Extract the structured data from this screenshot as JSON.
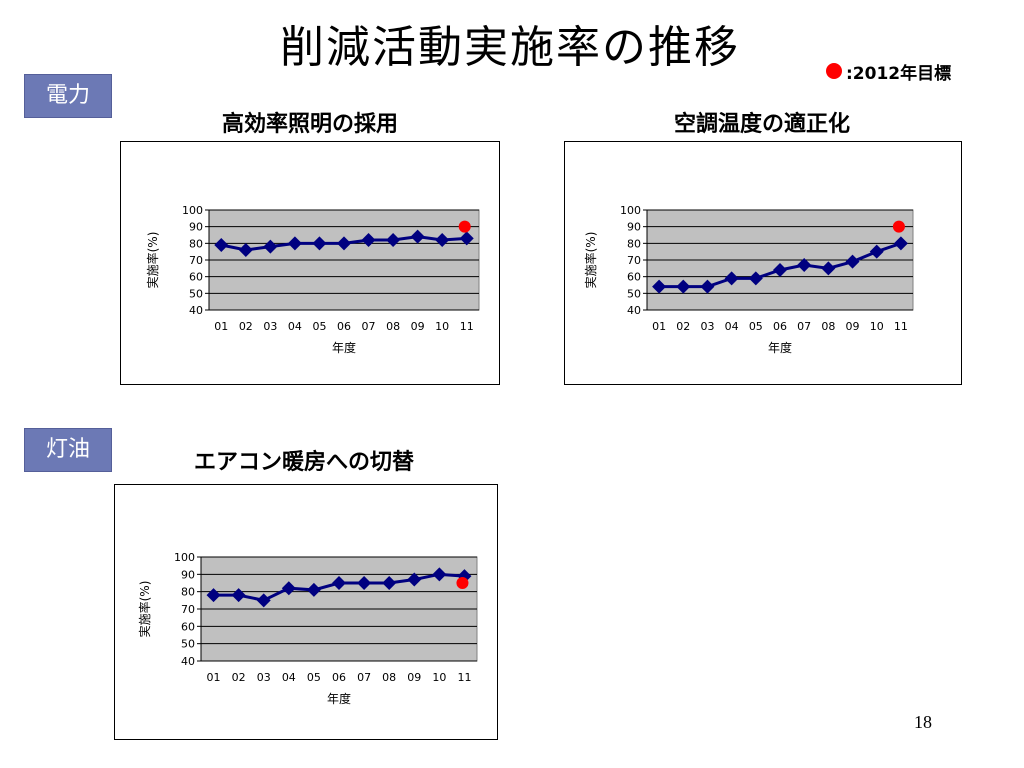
{
  "slide": {
    "title": "削減活動実施率の推移",
    "legend_text": ":2012年目標",
    "page_number": "18",
    "target_color": "#ff0000",
    "series_color": "#000080",
    "plot_bg": "#c0c0c0"
  },
  "sections": [
    {
      "label": "電力",
      "color": "#6c79b5"
    },
    {
      "label": "灯油",
      "color": "#6c79b5"
    }
  ],
  "chart_data": [
    {
      "type": "line",
      "title": "高効率照明の採用",
      "xlabel": "年度",
      "ylabel": "実施率(%)",
      "categories": [
        "01",
        "02",
        "03",
        "04",
        "05",
        "06",
        "07",
        "08",
        "09",
        "10",
        "11"
      ],
      "series": [
        {
          "values": [
            79,
            76,
            78,
            80,
            80,
            80,
            82,
            82,
            84,
            82,
            83
          ]
        }
      ],
      "target": {
        "x": "11",
        "value": 90
      },
      "ylim": [
        40,
        100
      ],
      "yticks": [
        40,
        50,
        60,
        70,
        80,
        90,
        100
      ],
      "grid": true
    },
    {
      "type": "line",
      "title": "空調温度の適正化",
      "xlabel": "年度",
      "ylabel": "実施率(%)",
      "categories": [
        "01",
        "02",
        "03",
        "04",
        "05",
        "06",
        "07",
        "08",
        "09",
        "10",
        "11"
      ],
      "series": [
        {
          "values": [
            54,
            54,
            54,
            59,
            59,
            64,
            67,
            65,
            69,
            75,
            80
          ]
        }
      ],
      "target": {
        "x": "11",
        "value": 90
      },
      "ylim": [
        40,
        100
      ],
      "yticks": [
        40,
        50,
        60,
        70,
        80,
        90,
        100
      ],
      "grid": true
    },
    {
      "type": "line",
      "title": "エアコン暖房への切替",
      "xlabel": "年度",
      "ylabel": "実施率(%)",
      "categories": [
        "01",
        "02",
        "03",
        "04",
        "05",
        "06",
        "07",
        "08",
        "09",
        "10",
        "11"
      ],
      "series": [
        {
          "values": [
            78,
            78,
            75,
            82,
            81,
            85,
            85,
            85,
            87,
            90,
            89
          ]
        }
      ],
      "target": {
        "x": "11",
        "value": 85
      },
      "ylim": [
        40,
        100
      ],
      "yticks": [
        40,
        50,
        60,
        70,
        80,
        90,
        100
      ],
      "grid": true
    }
  ]
}
